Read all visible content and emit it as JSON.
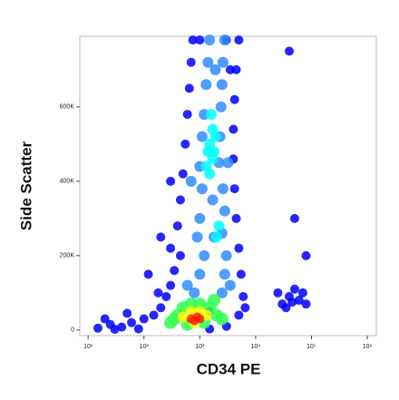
{
  "chart_data": {
    "type": "scatter",
    "x_label": "CD34 PE",
    "y_label": "Side Scatter",
    "xlog": true,
    "xlim": [
      7.1,
      1450000
    ],
    "ylim": [
      -15000,
      790000
    ],
    "xticks": [
      {
        "value": 10,
        "label": "10¹"
      },
      {
        "value": 100,
        "label": "10²"
      },
      {
        "value": 1000,
        "label": "10³"
      },
      {
        "value": 10000,
        "label": "10⁴"
      },
      {
        "value": 100000,
        "label": "10⁵"
      },
      {
        "value": 1000000,
        "label": "10⁶"
      }
    ],
    "yticks": [
      0,
      {
        "value": 200000,
        "label": "200K"
      },
      {
        "value": 400000,
        "label": "400K"
      },
      {
        "value": 600000,
        "label": "600K"
      }
    ],
    "series": [
      {
        "color": "#0000ff",
        "x": [
          15,
          25,
          40,
          60,
          100,
          150,
          200,
          250,
          300,
          350,
          300,
          400,
          450,
          500,
          550,
          600,
          650,
          700,
          750,
          5000,
          4500,
          4200,
          4000,
          4000,
          4200,
          4500,
          5000,
          5500,
          6000,
          5000,
          3000,
          1500,
          80,
          30,
          1000,
          3000,
          25000,
          30000,
          40000,
          50000,
          60000,
          70000,
          80000,
          35000,
          45000,
          120,
          200,
          300,
          50000,
          80000,
          40000,
          1500,
          20,
          50,
          180,
          450,
          6500,
          3500
        ],
        "values": [
          5000,
          15000,
          8000,
          20000,
          30000,
          40000,
          60000,
          90000,
          120000,
          160000,
          220000,
          280000,
          350000,
          420000,
          500000,
          580000,
          650000,
          720000,
          780000,
          780000,
          700000,
          620000,
          540000,
          460000,
          380000,
          300000,
          220000,
          150000,
          90000,
          40000,
          10000,
          3000,
          3000,
          2000,
          780000,
          780000,
          100000,
          70000,
          90000,
          110000,
          80000,
          100000,
          70000,
          60000,
          75000,
          150000,
          250000,
          400000,
          300000,
          200000,
          750000,
          50000,
          30000,
          45000,
          100000,
          200000,
          60000,
          700000
        ]
      },
      {
        "color": "#2f8cff",
        "x": [
          800,
          2500,
          1000,
          2800,
          1200,
          3000,
          900,
          2500,
          1000,
          2800,
          1100,
          2600,
          1000,
          2200,
          1100,
          2300,
          1200,
          2400,
          1300,
          2500,
          1400,
          2600,
          1500,
          2800,
          1800,
          1700,
          600,
          3500,
          1900,
          700,
          3200
        ],
        "values": [
          100000,
          100000,
          150000,
          150000,
          200000,
          200000,
          250000,
          260000,
          300000,
          320000,
          380000,
          380000,
          440000,
          450000,
          520000,
          520000,
          580000,
          600000,
          660000,
          660000,
          720000,
          720000,
          780000,
          780000,
          250000,
          350000,
          120000,
          120000,
          700000,
          400000,
          450000
        ]
      },
      {
        "color": "#00ffff",
        "x": [
          1500,
          1700,
          1500,
          1700,
          1600,
          1800,
          2000,
          2200,
          1400,
          1300,
          1900
        ],
        "values": [
          420000,
          460000,
          500000,
          540000,
          580000,
          480000,
          250000,
          280000,
          480000,
          440000,
          520000
        ]
      },
      {
        "color": "#30ff50",
        "x": [
          300,
          400,
          500,
          700,
          1000,
          1500,
          2000,
          2500,
          600,
          1200,
          350,
          1800
        ],
        "values": [
          20000,
          40000,
          60000,
          70000,
          70000,
          60000,
          40000,
          30000,
          15000,
          20000,
          30000,
          80000
        ]
      },
      {
        "color": "#ffff00",
        "x": [
          500,
          700,
          1000,
          1300,
          800
        ],
        "values": [
          35000,
          50000,
          50000,
          40000,
          20000
        ]
      },
      {
        "color": "#ff2000",
        "x": [
          700,
          900,
          800,
          1000
        ],
        "values": [
          30000,
          35000,
          25000,
          30000
        ]
      }
    ]
  }
}
